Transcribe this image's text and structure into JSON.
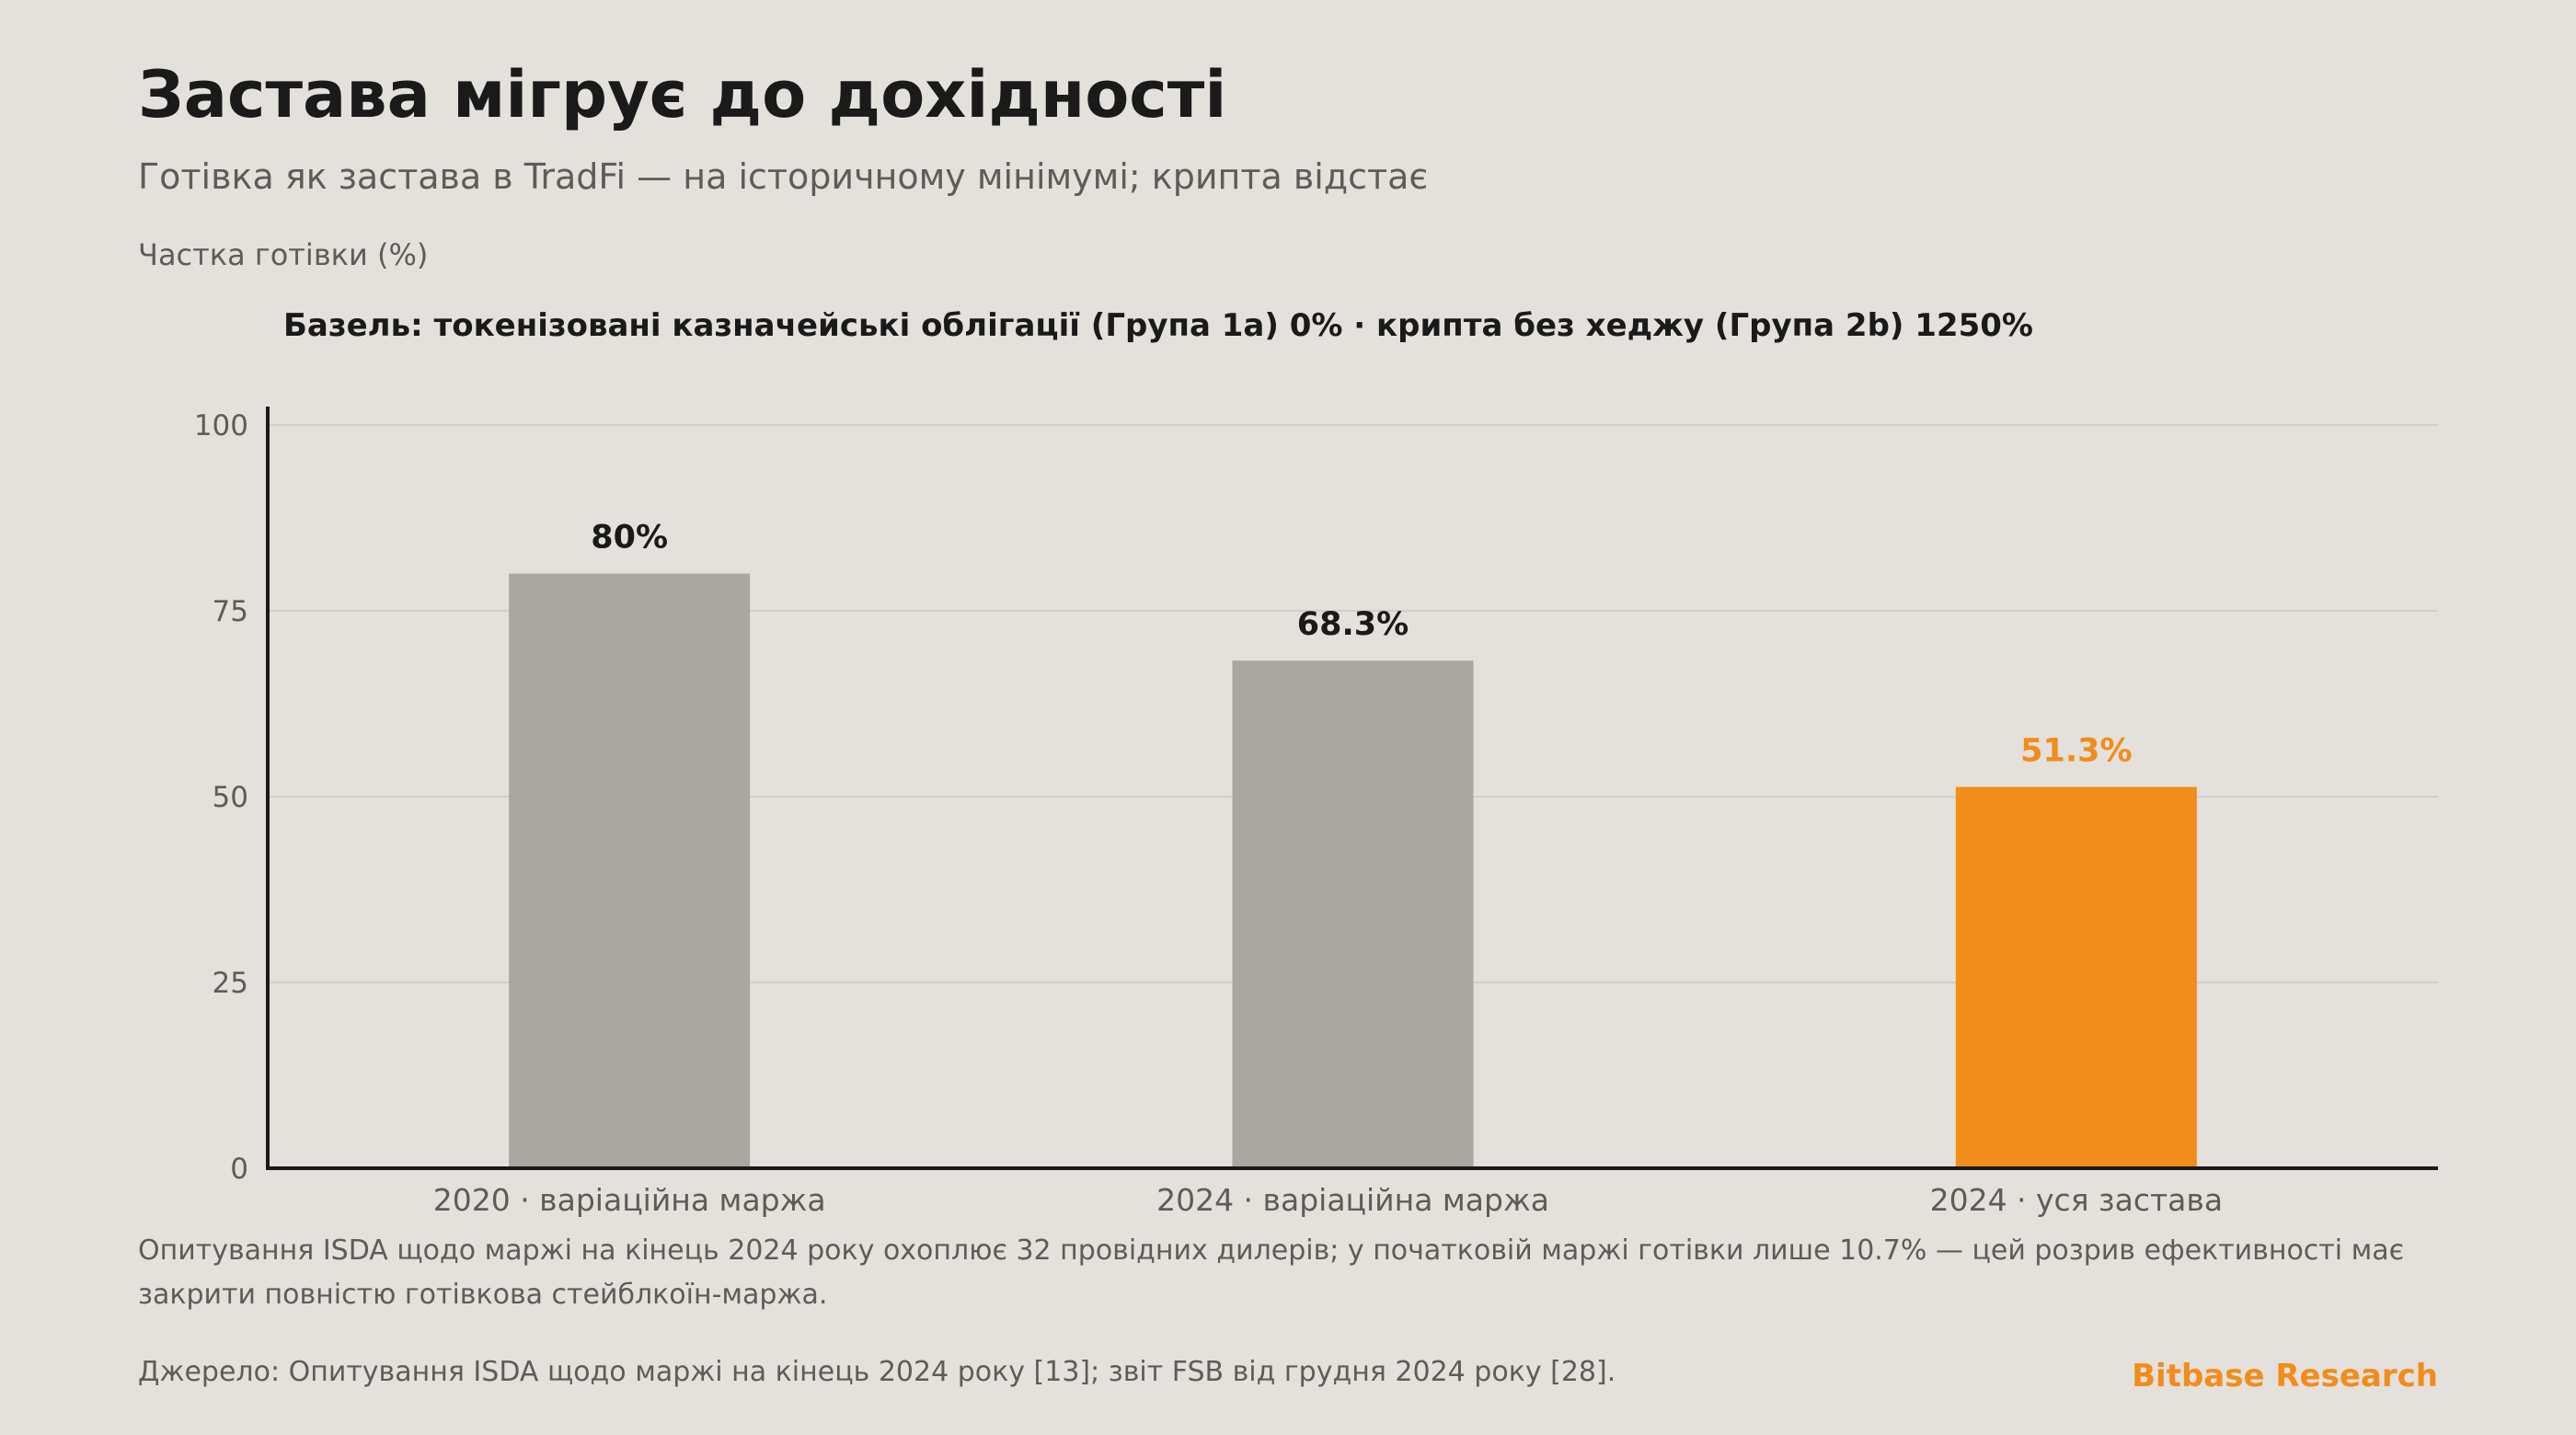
{
  "header": {
    "title": "Застава мігрує до дохідності",
    "subtitle": "Готівка як застава в TradFi — на історичному мінімумі; крипта відстає"
  },
  "colors": {
    "background": "#E4E0DB",
    "bar_default": "#AAA6A0",
    "bar_highlight": "#F28C1A",
    "value_label_default": "#1A1A1A",
    "value_label_highlight": "#F28C1A",
    "grid": "#D2CEC8",
    "axis": "#1A1A1A"
  },
  "chart_data": {
    "type": "bar",
    "ylabel": "Частка готівки (%)",
    "annotation": "Базель: токенізовані казначейські облігації (Група 1a) 0% · крипта без хеджу (Група 2b) 1250%",
    "categories": [
      "2020 · варіаційна маржа",
      "2024 · варіаційна маржа",
      "2024 · уся застава"
    ],
    "values": [
      80,
      68.3,
      51.3
    ],
    "value_labels": [
      "80%",
      "68.3%",
      "51.3%"
    ],
    "highlight_index": 2,
    "ylim": [
      0,
      100
    ],
    "yticks": [
      0,
      25,
      50,
      75,
      100
    ],
    "grid": true
  },
  "footer": {
    "note": "Опитування ISDA щодо маржі на кінець 2024 року охоплює 32 провідних дилерів; у початковій маржі готівки лише 10.7% — цей розрив ефективності має закрити повністю готівкова стейблкоїн-маржа.",
    "source": "Джерело: Опитування ISDA щодо маржі на кінець 2024 року [13]; звіт FSB від грудня 2024 року [28].",
    "brand": "Bitbase Research"
  }
}
